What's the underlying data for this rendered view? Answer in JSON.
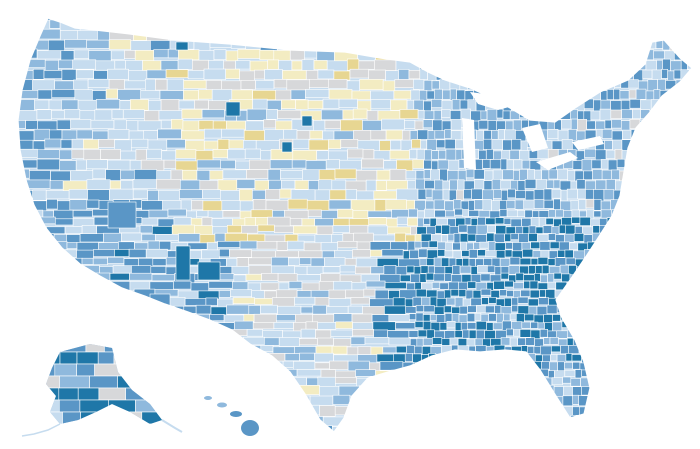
{
  "map": {
    "kind": "choropleth-county-map",
    "region": "United States",
    "legend_visible": false,
    "title": "",
    "palette": {
      "background": "#ffffff",
      "border": "#ffffff",
      "no_data": "#d7d8da",
      "class_1_yellow": "#f3ecc2",
      "class_2_yellow": "#e7d692",
      "class_3_light_blue": "#c6dcef",
      "class_4_mid_blue": "#8fb9dd",
      "class_5_blue": "#5a96c6",
      "class_6_dark_blue": "#1f77a8"
    },
    "regions": [
      {
        "name": "contiguous-us",
        "dominant_class": "class_3_light_blue"
      },
      {
        "name": "alaska",
        "dominant_class": "class_5_blue"
      },
      {
        "name": "hawaii",
        "dominant_class": "class_5_blue"
      }
    ],
    "patterns": [
      {
        "area": "northern-plains",
        "dominant_class": "class_1_yellow"
      },
      {
        "area": "southeast",
        "dominant_class": "class_6_dark_blue"
      },
      {
        "area": "west-coast",
        "dominant_class": "class_5_blue"
      },
      {
        "area": "michigan",
        "dominant_class": "class_5_blue"
      },
      {
        "area": "southwest",
        "dominant_class": "class_5_blue"
      },
      {
        "area": "texas-west",
        "dominant_class": "no_data"
      }
    ]
  }
}
